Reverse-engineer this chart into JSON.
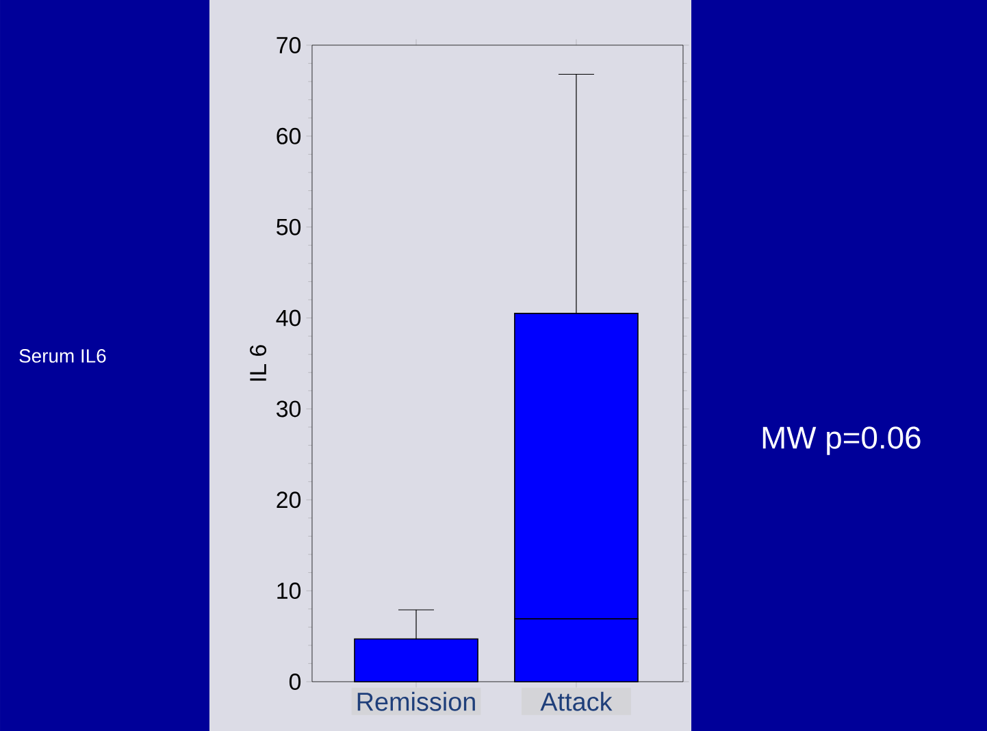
{
  "chart_data": {
    "type": "bar",
    "stacked": true,
    "ylabel": "IL 6",
    "categories": [
      "Remission",
      "Attack"
    ],
    "series": [
      {
        "color": "#0000ff",
        "values": [
          4.7,
          6.9
        ],
        "errors": [
          [
            4.7,
            7.9
          ],
          null
        ]
      },
      {
        "color": "#0000ff",
        "values": [
          null,
          33.6
        ],
        "errors": [
          null,
          [
            40.5,
            66.8
          ]
        ]
      }
    ],
    "ylim": [
      0,
      70
    ],
    "yticks": [
      0,
      10,
      20,
      30,
      40,
      50,
      60,
      70
    ],
    "grid": false,
    "annotations": [
      "Serum IL6",
      "MW p=0.06"
    ]
  }
}
